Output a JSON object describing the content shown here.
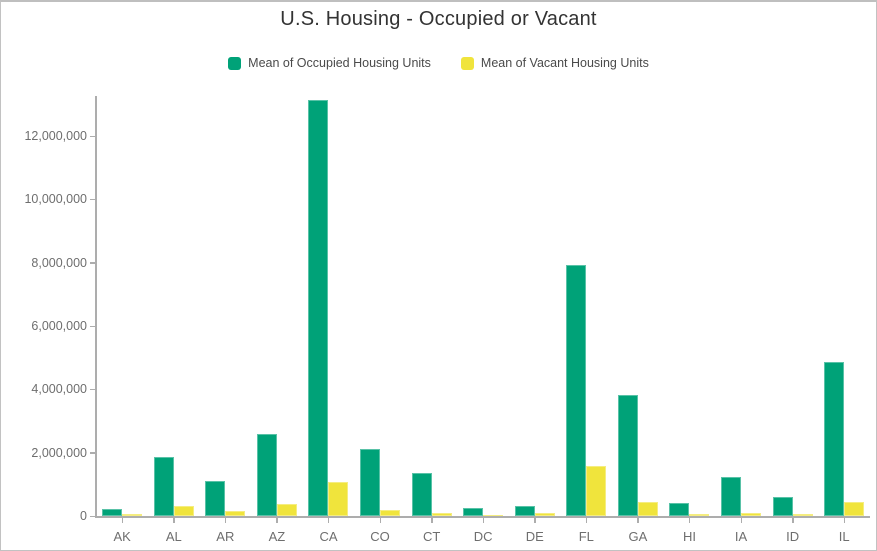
{
  "title": "U.S. Housing - Occupied or Vacant",
  "colors": {
    "occupied": "#00a278",
    "vacant": "#f0e43c",
    "axis_line": "#adadad",
    "tick_label": "#6e6e6e",
    "title_text": "#333333",
    "legend_text": "#4a4a4a",
    "frame_border": "#c2c2c2",
    "background": "#ffffff"
  },
  "legend": {
    "items": [
      {
        "label": "Mean of Occupied Housing Units",
        "color": "#00a278"
      },
      {
        "label": "Mean of Vacant Housing Units",
        "color": "#f0e43c"
      }
    ],
    "position": "top"
  },
  "chart_data": {
    "type": "bar",
    "title": "U.S. Housing - Occupied or Vacant",
    "categories": [
      "AK",
      "AL",
      "AR",
      "AZ",
      "CA",
      "CO",
      "CT",
      "DC",
      "DE",
      "FL",
      "GA",
      "HI",
      "IA",
      "ID",
      "IL"
    ],
    "series": [
      {
        "name": "Mean of Occupied Housing Units",
        "color": "#00a278",
        "values": [
          215000,
          1850000,
          1120000,
          2600000,
          13150000,
          2110000,
          1350000,
          260000,
          330000,
          7920000,
          3810000,
          420000,
          1220000,
          610000,
          4870000
        ]
      },
      {
        "name": "Mean of Vacant Housing Units",
        "color": "#f0e43c",
        "values": [
          57000,
          330000,
          150000,
          370000,
          1060000,
          180000,
          80000,
          35000,
          80000,
          1590000,
          450000,
          50000,
          110000,
          70000,
          450000
        ]
      }
    ],
    "xlabel": "",
    "ylabel": "",
    "ylim": [
      0,
      13400000
    ],
    "yticks": [
      0,
      2000000,
      4000000,
      6000000,
      8000000,
      10000000,
      12000000
    ],
    "ytick_labels": [
      "0",
      "2,000,000",
      "4,000,000",
      "6,000,000",
      "8,000,000",
      "10,000,000",
      "12,000,000"
    ],
    "grid": false,
    "legend_position": "top"
  }
}
